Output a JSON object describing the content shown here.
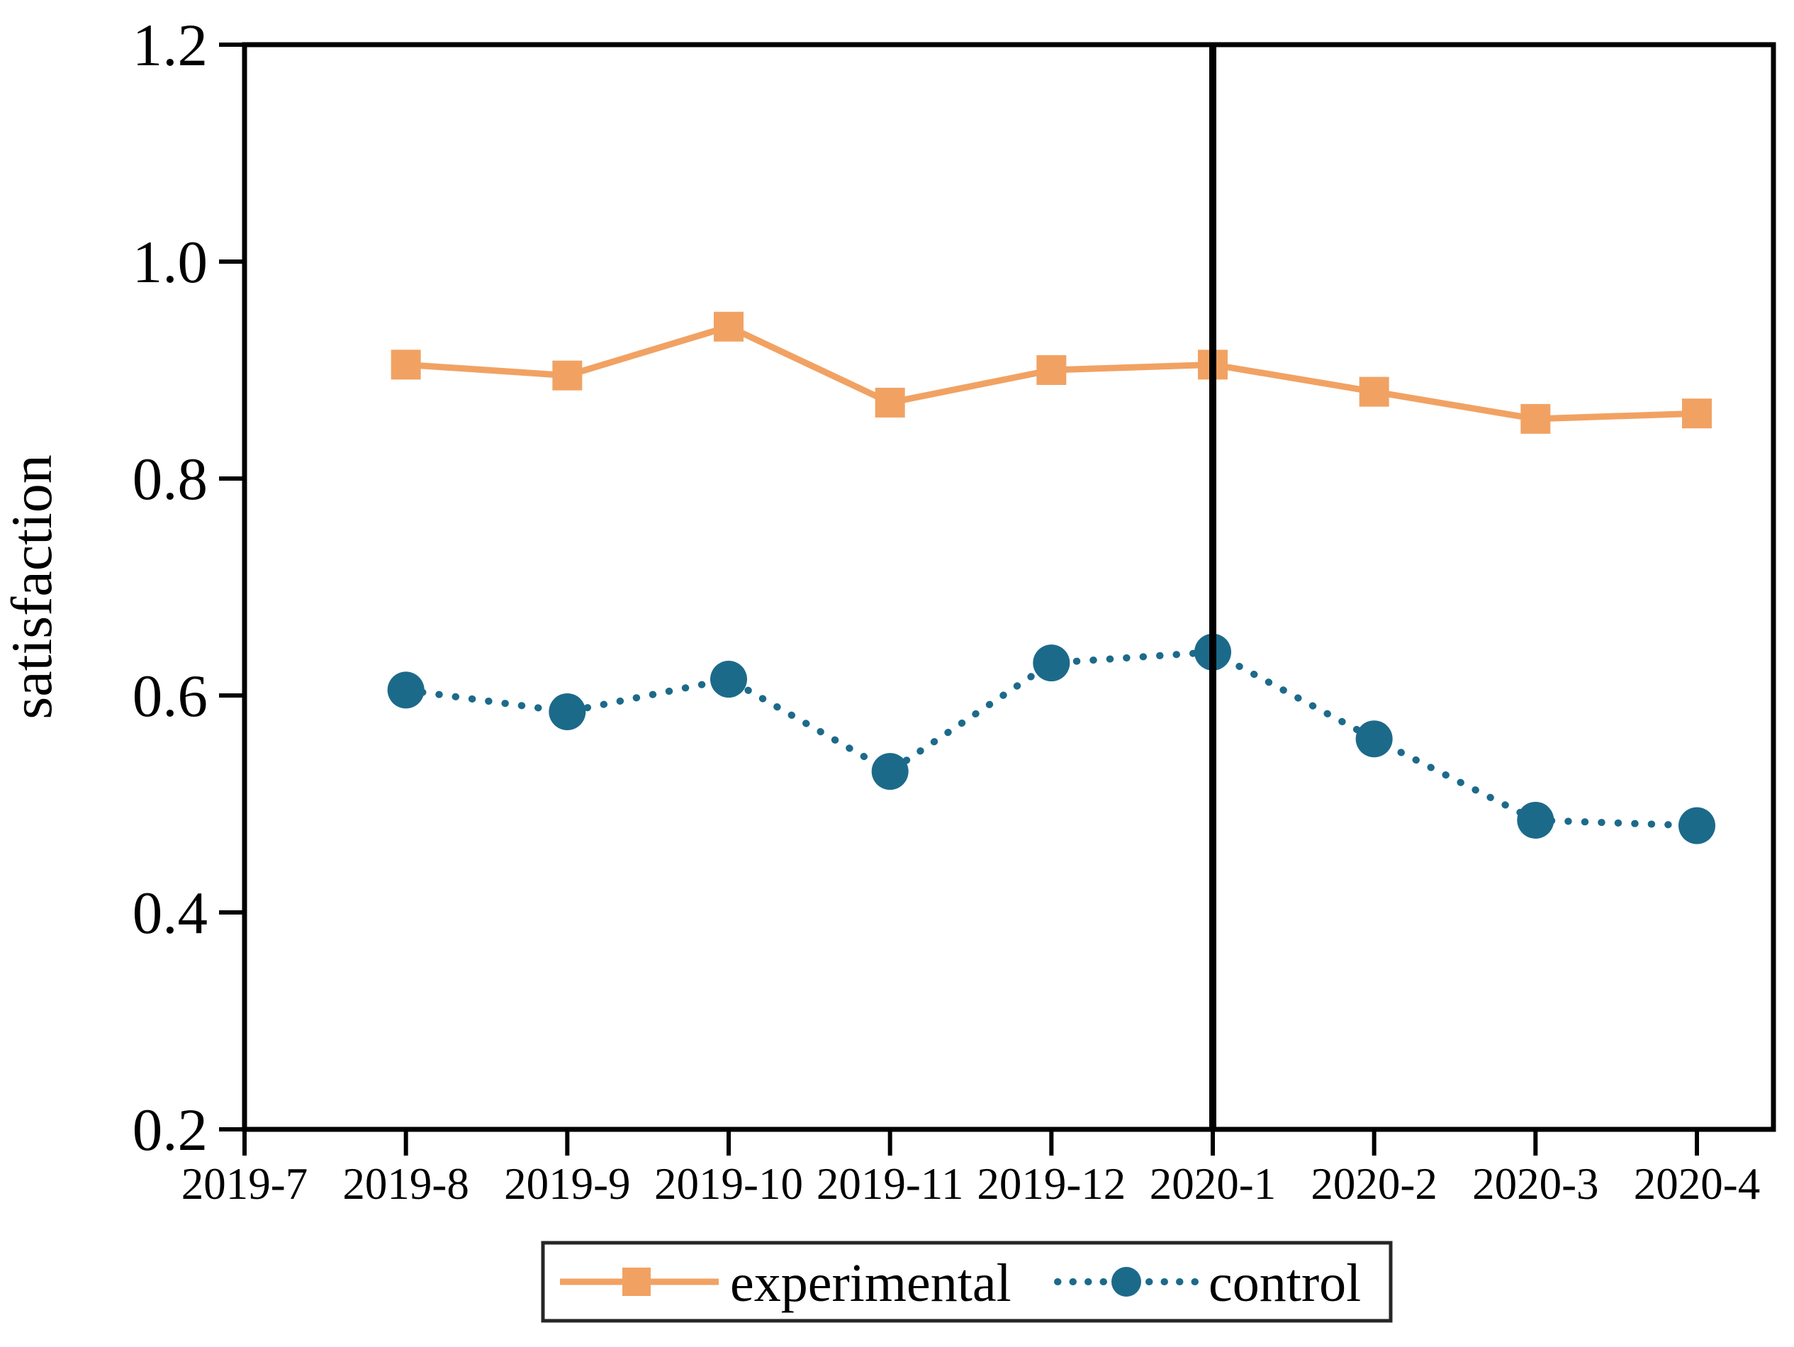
{
  "figure": {
    "background": "#ffffff"
  },
  "chart_data": {
    "type": "line",
    "title": "",
    "xlabel": "",
    "ylabel": "satisfaction",
    "ylim": [
      0.2,
      1.2
    ],
    "yticks": [
      0.2,
      0.4,
      0.6,
      0.8,
      1.0,
      1.2
    ],
    "ytick_labels": [
      "0.2",
      "0.4",
      "0.6",
      "0.8",
      "1.0",
      "1.2"
    ],
    "categories": [
      "2019-7",
      "2019-8",
      "2019-9",
      "2019-10",
      "2019-11",
      "2019-12",
      "2020-1",
      "2020-2",
      "2020-3",
      "2020-4"
    ],
    "grid": false,
    "series": [
      {
        "name": "experimental",
        "color": "#f1a263",
        "marker": "square",
        "line_style": "solid",
        "x": [
          "2019-8",
          "2019-9",
          "2019-10",
          "2019-11",
          "2019-12",
          "2020-1",
          "2020-2",
          "2020-3",
          "2020-4"
        ],
        "values": [
          0.905,
          0.895,
          0.94,
          0.87,
          0.9,
          0.905,
          0.88,
          0.855,
          0.86
        ]
      },
      {
        "name": "control",
        "color": "#1c6a8a",
        "marker": "circle",
        "line_style": "dotted",
        "x": [
          "2019-8",
          "2019-9",
          "2019-10",
          "2019-11",
          "2019-12",
          "2020-1",
          "2020-2",
          "2020-3",
          "2020-4"
        ],
        "values": [
          0.605,
          0.585,
          0.615,
          0.53,
          0.63,
          0.64,
          0.56,
          0.485,
          0.48
        ]
      }
    ],
    "vline": {
      "x": "2020-1",
      "color": "#000000"
    },
    "legend": {
      "position": "bottom",
      "border_color": "#262626",
      "entries": [
        "experimental",
        "control"
      ]
    },
    "axis_color": "#000000"
  }
}
